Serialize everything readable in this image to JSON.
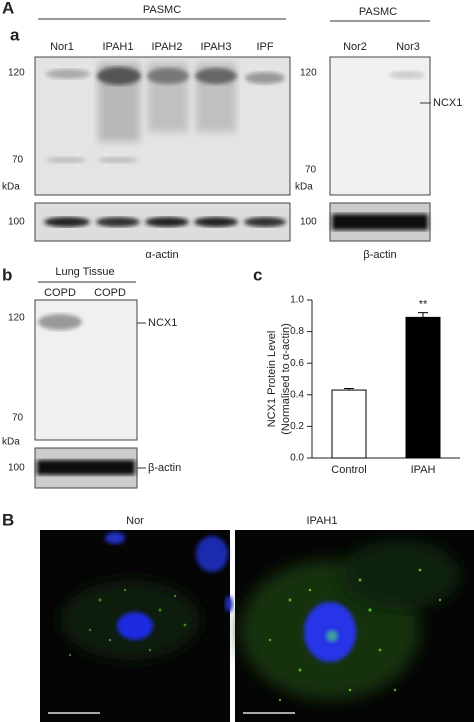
{
  "panel_a": {
    "figure_label": "A",
    "label": "a",
    "left": {
      "group": "PASMC",
      "lanes": [
        "Nor1",
        "IPAH1",
        "IPAH2",
        "IPAH3",
        "IPF"
      ],
      "markers": [
        "120",
        "70"
      ],
      "kda": "kDa",
      "control_marker": "100",
      "control": "α-actin"
    },
    "right": {
      "group": "PASMC",
      "lanes": [
        "Nor2",
        "Nor3"
      ],
      "markers": [
        "120",
        "70"
      ],
      "kda": "kDa",
      "control_marker": "100",
      "control": "β-actin",
      "target": "NCX1"
    }
  },
  "panel_b": {
    "label": "b",
    "group": "Lung Tissue",
    "lanes": [
      "COPD",
      "COPD"
    ],
    "markers": [
      "120",
      "70"
    ],
    "kda": "kDa",
    "control_marker": "100",
    "target": "NCX1",
    "control": "β-actin"
  },
  "chart_data": {
    "type": "bar",
    "label": "c",
    "ylabel": [
      "NCX1 Protein Level",
      "(Normalised to α-actin)"
    ],
    "categories": [
      "Control",
      "IPAH"
    ],
    "values": [
      0.43,
      0.89
    ],
    "errors": [
      0.01,
      0.03
    ],
    "colors": [
      "#ffffff",
      "#000000"
    ],
    "annotation": "**",
    "ylim": [
      0,
      1
    ],
    "yticks": [
      {
        "value": 0,
        "label": "0.0"
      },
      0.2,
      0.4,
      0.6,
      0.8,
      {
        "value": 1,
        "label": "1.0"
      }
    ]
  },
  "panel_B": {
    "label": "B",
    "images": [
      "Nor",
      "IPAH1"
    ]
  }
}
